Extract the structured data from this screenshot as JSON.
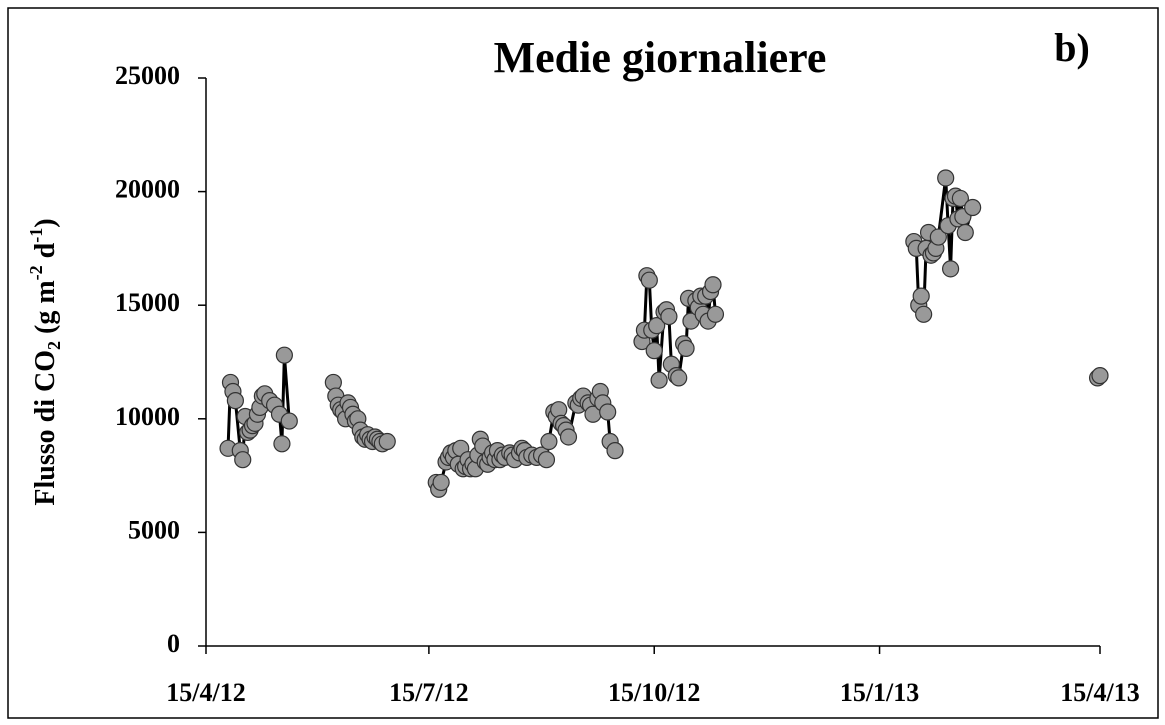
{
  "chart_data": {
    "type": "line",
    "title": "Medie giornaliere",
    "annotation": "b)",
    "y_label": [
      {
        "text": "Flusso di CO"
      },
      {
        "text": "2",
        "shift": "sub"
      },
      {
        "text": " (g m"
      },
      {
        "text": "-2",
        "shift": "super"
      },
      {
        "text": " d"
      },
      {
        "text": "-1",
        "shift": "super"
      },
      {
        "text": ")"
      }
    ],
    "x": [
      "24/4/12",
      "25/4/12",
      "26/4/12",
      "27/4/12",
      "29/4/12",
      "30/4/12",
      "1/5/12",
      "2/5/12",
      "3/5/12",
      "4/5/12",
      "5/5/12",
      "6/5/12",
      "7/5/12",
      "8/5/12",
      "9/5/12",
      "11/5/12",
      "13/5/12",
      "15/5/12",
      "16/5/12",
      "17/5/12",
      "19/5/12",
      "20/5/12",
      "6/6/12",
      "7/6/12",
      "8/6/12",
      "9/6/12",
      "10/6/12",
      "11/6/12",
      "12/6/12",
      "13/6/12",
      "14/6/12",
      "15/6/12",
      "16/6/12",
      "17/6/12",
      "18/6/12",
      "19/6/12",
      "20/6/12",
      "21/6/12",
      "22/6/12",
      "23/6/12",
      "24/6/12",
      "25/6/12",
      "26/6/12",
      "28/6/12",
      "29/6/12",
      "18/7/12",
      "19/7/12",
      "20/7/12",
      "22/7/12",
      "23/7/12",
      "24/7/12",
      "25/7/12",
      "26/7/12",
      "27/7/12",
      "28/7/12",
      "29/7/12",
      "30/7/12",
      "31/7/12",
      "1/8/12",
      "2/8/12",
      "3/8/12",
      "4/8/12",
      "5/8/12",
      "6/8/12",
      "7/8/12",
      "8/8/12",
      "9/8/12",
      "10/8/12",
      "11/8/12",
      "12/8/12",
      "13/8/12",
      "14/8/12",
      "15/8/12",
      "17/8/12",
      "18/8/12",
      "19/8/12",
      "21/8/12",
      "22/8/12",
      "23/8/12",
      "24/8/12",
      "26/8/12",
      "28/8/12",
      "30/8/12",
      "1/9/12",
      "2/9/12",
      "4/9/12",
      "5/9/12",
      "6/9/12",
      "7/9/12",
      "8/9/12",
      "9/9/12",
      "10/9/12",
      "13/9/12",
      "14/9/12",
      "15/9/12",
      "16/9/12",
      "18/9/12",
      "19/9/12",
      "20/9/12",
      "22/9/12",
      "23/9/12",
      "24/9/12",
      "26/9/12",
      "27/9/12",
      "29/9/12",
      "1/10/12",
      "10/10/12",
      "11/10/12",
      "12/10/12",
      "13/10/12",
      "14/10/12",
      "15/10/12",
      "16/10/12",
      "17/10/12",
      "19/10/12",
      "20/10/12",
      "21/10/12",
      "22/10/12",
      "24/10/12",
      "25/10/12",
      "27/10/12",
      "28/10/12",
      "29/10/12",
      "30/10/12",
      "1/11/12",
      "2/11/12",
      "3/11/12",
      "4/11/12",
      "5/11/12",
      "6/11/12",
      "7/11/12",
      "8/11/12",
      "9/11/12",
      "10/11/12",
      "29/1/13",
      "30/1/13",
      "31/1/13",
      "1/2/13",
      "2/2/13",
      "3/2/13",
      "4/2/13",
      "5/2/13",
      "6/2/13",
      "7/2/13",
      "8/2/13",
      "11/2/13",
      "12/2/13",
      "13/2/13",
      "14/2/13",
      "15/2/13",
      "16/2/13",
      "17/2/13",
      "18/2/13",
      "19/2/13",
      "22/2/13",
      "23/2/13",
      "14/4/13",
      "15/4/13"
    ],
    "series": [
      {
        "color": "#999999",
        "values": [
          8700,
          11600,
          11200,
          10800,
          8600,
          8200,
          10100,
          9400,
          9500,
          9700,
          9800,
          10200,
          10500,
          11000,
          11100,
          10800,
          10600,
          10200,
          8900,
          12800,
          9900,
          null,
          11600,
          11000,
          10600,
          10400,
          10300,
          10000,
          10700,
          10500,
          10200,
          9900,
          10000,
          9500,
          9200,
          9100,
          9300,
          9100,
          9000,
          9200,
          9100,
          9000,
          8900,
          9000,
          null,
          7200,
          6900,
          7200,
          8100,
          8300,
          8500,
          8300,
          8600,
          8000,
          8700,
          7800,
          7900,
          8200,
          7800,
          8000,
          7800,
          8400,
          9100,
          8800,
          8100,
          8000,
          8300,
          8500,
          8200,
          8600,
          8200,
          8400,
          8300,
          8500,
          8400,
          8200,
          8500,
          8700,
          8600,
          8300,
          8400,
          8300,
          8400,
          8200,
          9000,
          10300,
          10100,
          10400,
          9800,
          9700,
          9500,
          9200,
          10700,
          10600,
          10900,
          11000,
          10700,
          10600,
          10200,
          10900,
          11200,
          10700,
          10300,
          9000,
          8600,
          null,
          13400,
          13900,
          16300,
          16100,
          13900,
          13000,
          14100,
          11700,
          14700,
          14800,
          14500,
          12400,
          11900,
          11800,
          13300,
          13100,
          15300,
          14300,
          15200,
          14900,
          15400,
          14600,
          15400,
          14300,
          15600,
          15900,
          14600,
          null,
          17800,
          17500,
          15000,
          15400,
          14600,
          17500,
          18200,
          17200,
          17300,
          17500,
          18000,
          20600,
          18500,
          16600,
          19700,
          19800,
          18800,
          19700,
          18900,
          18200,
          19300,
          null,
          11800,
          11900
        ]
      }
    ],
    "xlim": [
      "15/4/12",
      "15/4/13"
    ],
    "xticks": [
      "15/4/12",
      "15/7/12",
      "15/10/12",
      "15/1/13",
      "15/4/13"
    ],
    "ylim": [
      0,
      25000
    ],
    "yticks": [
      0,
      5000,
      10000,
      15000,
      20000,
      25000
    ],
    "grid": false
  }
}
